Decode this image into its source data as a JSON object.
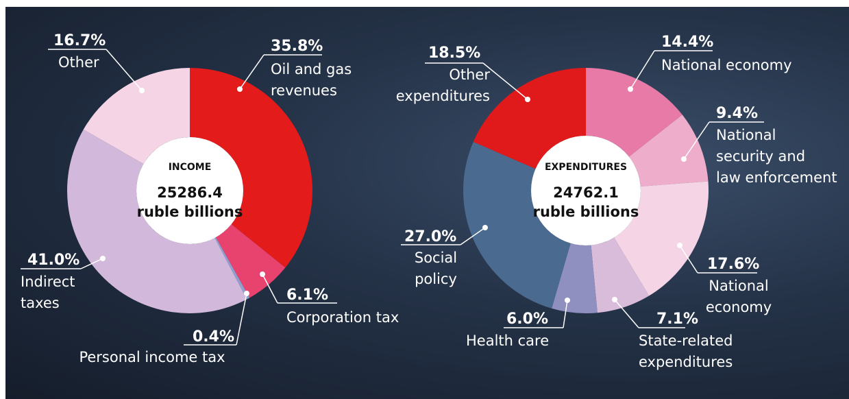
{
  "chart_data": [
    {
      "type": "donut",
      "center_title": "INCOME",
      "total": 25286.4,
      "total_unit": "ruble billions",
      "categories": [
        "Oil and gas revenues",
        "Corporation tax",
        "Personal income tax",
        "Indirect taxes",
        "Other"
      ],
      "values": [
        35.8,
        6.1,
        0.4,
        41.0,
        16.7
      ],
      "value_labels": [
        "35.8%",
        "6.1%",
        "0.4%",
        "41.0%",
        "16.7%"
      ],
      "colors": [
        "#e31b1b",
        "#e8426e",
        "#8f9fd0",
        "#d2b8da",
        "#f5d5e5"
      ]
    },
    {
      "type": "donut",
      "center_title": "EXPENDITURES",
      "total": 24762.1,
      "total_unit": "ruble billions",
      "categories": [
        "National economy",
        "National security and law enforcement",
        "National economy",
        "State-related expenditures",
        "Health care",
        "Social policy",
        "Other expenditures"
      ],
      "values": [
        14.4,
        9.4,
        17.6,
        7.1,
        6.0,
        27.0,
        18.5
      ],
      "value_labels": [
        "14.4%",
        "9.4%",
        "17.6%",
        "7.1%",
        "6.0%",
        "27.0%",
        "18.5%"
      ],
      "colors": [
        "#e87aa8",
        "#eeaecb",
        "#f5d5e5",
        "#d9bcd9",
        "#8f8fc0",
        "#4a6a8f",
        "#e01a1a"
      ]
    }
  ]
}
